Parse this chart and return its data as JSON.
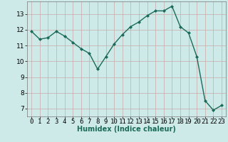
{
  "x": [
    0,
    1,
    2,
    3,
    4,
    5,
    6,
    7,
    8,
    9,
    10,
    11,
    12,
    13,
    14,
    15,
    16,
    17,
    18,
    19,
    20,
    21,
    22,
    23
  ],
  "y": [
    11.9,
    11.4,
    11.5,
    11.9,
    11.6,
    11.2,
    10.8,
    10.5,
    9.5,
    10.3,
    11.1,
    11.7,
    12.2,
    12.5,
    12.9,
    13.2,
    13.2,
    13.5,
    12.2,
    11.8,
    10.3,
    7.5,
    6.9,
    7.2
  ],
  "line_color": "#1a6b5a",
  "marker": "D",
  "marker_size": 2,
  "bg_color": "#ceeae8",
  "grid_color": "#c8a8a8",
  "xlabel": "Humidex (Indice chaleur)",
  "ylim": [
    6.5,
    13.8
  ],
  "xlim": [
    -0.5,
    23.5
  ],
  "yticks": [
    7,
    8,
    9,
    10,
    11,
    12,
    13
  ],
  "xticks": [
    0,
    1,
    2,
    3,
    4,
    5,
    6,
    7,
    8,
    9,
    10,
    11,
    12,
    13,
    14,
    15,
    16,
    17,
    18,
    19,
    20,
    21,
    22,
    23
  ],
  "xlabel_fontsize": 7,
  "tick_fontsize": 6.5,
  "linewidth": 1.0
}
